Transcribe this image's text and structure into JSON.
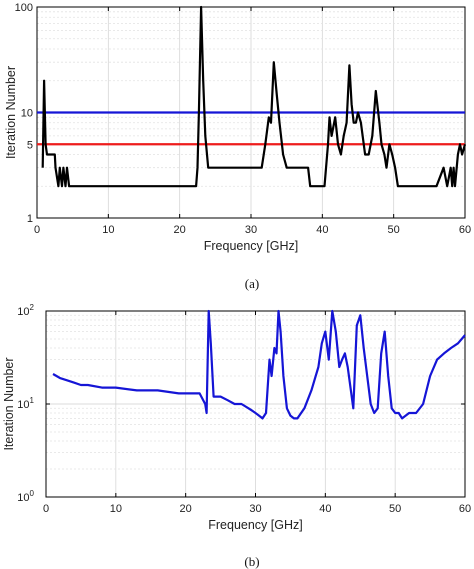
{
  "chart_data": [
    {
      "panel": "(a)",
      "type": "line",
      "xlabel": "Frequency [GHz]",
      "ylabel": "Iteration Number",
      "xlim": [
        0,
        60
      ],
      "ylim": [
        1,
        100
      ],
      "yscale": "log",
      "grid": true,
      "xticks": [
        "0",
        "10",
        "20",
        "30",
        "40",
        "50",
        "60"
      ],
      "yticks": [
        {
          "v": 1,
          "label": "1"
        },
        {
          "v": 5,
          "label": "5"
        },
        {
          "v": 10,
          "label": "10"
        },
        {
          "v": 100,
          "label": "100"
        }
      ],
      "hlines": [
        {
          "y": 10,
          "color": "#1515d6"
        },
        {
          "y": 5,
          "color": "#ee1c1c"
        }
      ],
      "series": [
        {
          "color": "#000000",
          "x": [
            0.8,
            1.0,
            1.2,
            1.4,
            2.5,
            2.6,
            3.0,
            3.2,
            3.5,
            3.7,
            4.0,
            4.2,
            4.5,
            4.8,
            5.0,
            22.3,
            22.5,
            22.7,
            23.0,
            23.3,
            23.6,
            24.0,
            24.3,
            25.0,
            31.5,
            32.0,
            32.5,
            32.8,
            33.2,
            33.6,
            34.0,
            34.5,
            35.0,
            35.5,
            38.0,
            38.3,
            39.0,
            39.5,
            40.0,
            40.3,
            40.8,
            41.0,
            41.3,
            41.8,
            42.2,
            42.6,
            43.0,
            43.4,
            43.8,
            44.1,
            44.4,
            44.7,
            45.0,
            45.4,
            46.0,
            46.5,
            47.0,
            47.5,
            48.0,
            48.3,
            48.7,
            49.0,
            49.4,
            49.8,
            50.2,
            50.6,
            51.0,
            52.0,
            53.0,
            56.0,
            57.0,
            57.5,
            58.0,
            58.2,
            58.4,
            58.6,
            59.0,
            59.3,
            59.6,
            60.0
          ],
          "y": [
            3,
            20,
            5,
            4,
            4,
            3,
            2,
            3,
            2,
            3,
            2,
            3,
            2,
            2,
            2,
            2,
            3,
            10,
            100,
            20,
            6,
            3,
            3,
            3,
            3,
            5,
            9,
            8,
            30,
            15,
            8,
            4,
            3,
            3,
            3,
            2,
            2,
            2,
            2,
            2,
            5,
            9,
            6,
            9,
            5,
            4,
            6,
            8,
            28,
            12,
            8,
            8,
            10,
            8,
            4,
            4,
            6,
            16,
            8,
            5,
            4,
            3,
            5,
            4,
            3,
            2,
            2,
            2,
            2,
            2,
            3,
            2,
            3,
            2,
            3,
            2,
            4,
            5,
            4,
            5
          ]
        }
      ]
    },
    {
      "panel": "(b)",
      "type": "line",
      "xlabel": "Frequency [GHz]",
      "ylabel": "Iteration Number",
      "xlim": [
        0,
        60
      ],
      "ylim": [
        1,
        100
      ],
      "yscale": "log",
      "grid": true,
      "xticks": [
        "0",
        "10",
        "20",
        "30",
        "40",
        "50",
        "60"
      ],
      "yticks": [
        {
          "v": 1,
          "label": "10",
          "exp": "0"
        },
        {
          "v": 10,
          "label": "10",
          "exp": "1"
        },
        {
          "v": 100,
          "label": "10",
          "exp": "2"
        }
      ],
      "series": [
        {
          "color": "#1515d6",
          "x": [
            1,
            1.5,
            2,
            3,
            4,
            5,
            6,
            8,
            10,
            13,
            16,
            19,
            22,
            22.8,
            23,
            23.3,
            23.6,
            24,
            25,
            26,
            27,
            28,
            29,
            29.5,
            30,
            30.5,
            31,
            31.5,
            32,
            32.3,
            32.7,
            33,
            33.3,
            33.6,
            34,
            34.5,
            35,
            35.5,
            36,
            37,
            38,
            39,
            39.5,
            40,
            40.5,
            41,
            41.5,
            42,
            42.4,
            42.8,
            43.2,
            43.6,
            44,
            44.5,
            45,
            45.5,
            46,
            46.5,
            47,
            47.5,
            48,
            48.5,
            49,
            49.5,
            50,
            50.5,
            51,
            52,
            53,
            54,
            55,
            56,
            57,
            58,
            59,
            60
          ],
          "y": [
            21,
            20,
            19,
            18,
            17,
            16,
            16,
            15,
            15,
            14,
            14,
            13,
            13,
            10,
            8,
            100,
            45,
            12,
            12,
            11,
            10,
            10,
            9,
            8.5,
            8,
            7.5,
            7,
            8,
            30,
            20,
            40,
            35,
            100,
            60,
            20,
            9,
            7.5,
            7,
            7,
            9,
            14,
            25,
            45,
            60,
            30,
            100,
            60,
            25,
            30,
            35,
            25,
            15,
            9,
            70,
            90,
            40,
            20,
            10,
            8,
            9,
            35,
            60,
            20,
            9,
            8,
            8,
            7,
            8,
            8,
            10,
            20,
            30,
            35,
            40,
            45,
            55
          ]
        }
      ]
    }
  ],
  "captions": {
    "a": "(a)",
    "b": "(b)"
  }
}
